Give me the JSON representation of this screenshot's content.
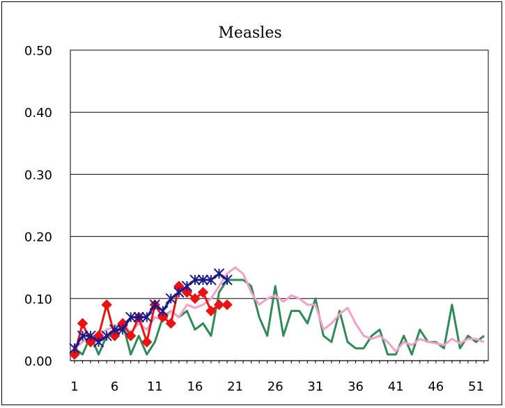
{
  "chart_data": {
    "type": "line",
    "title": "Measles",
    "xlabel": "",
    "ylabel": "",
    "xlim": [
      1,
      52
    ],
    "ylim": [
      0,
      0.5
    ],
    "yticks": [
      "0.00",
      "0.10",
      "0.20",
      "0.30",
      "0.40",
      "0.50"
    ],
    "xticks": [
      "1",
      "6",
      "11",
      "16",
      "21",
      "26",
      "31",
      "36",
      "41",
      "46",
      "51"
    ],
    "grid": true,
    "legend": "none",
    "series": [
      {
        "color": "#2e8b57",
        "marker": "none",
        "x": [
          1,
          2,
          3,
          4,
          5,
          6,
          7,
          8,
          9,
          10,
          11,
          12,
          13,
          14,
          15,
          16,
          17,
          18,
          19,
          20,
          21,
          22,
          23,
          24,
          25,
          26,
          27,
          28,
          29,
          30,
          31,
          32,
          33,
          34,
          35,
          36,
          37,
          38,
          39,
          40,
          41,
          42,
          43,
          44,
          45,
          46,
          47,
          48,
          49,
          50,
          51,
          52
        ],
        "values": [
          0.02,
          0.01,
          0.04,
          0.01,
          0.04,
          0.04,
          0.06,
          0.01,
          0.04,
          0.01,
          0.03,
          0.07,
          0.08,
          0.07,
          0.08,
          0.05,
          0.06,
          0.04,
          0.11,
          0.13,
          0.13,
          0.13,
          0.12,
          0.07,
          0.04,
          0.12,
          0.04,
          0.08,
          0.08,
          0.06,
          0.1,
          0.04,
          0.03,
          0.08,
          0.03,
          0.02,
          0.02,
          0.04,
          0.05,
          0.01,
          0.01,
          0.04,
          0.01,
          0.05,
          0.03,
          0.03,
          0.02,
          0.09,
          0.02,
          0.04,
          0.03,
          0.04
        ]
      },
      {
        "color": "#f4a0c8",
        "marker": "none",
        "x": [
          1,
          2,
          3,
          4,
          5,
          6,
          7,
          8,
          9,
          10,
          11,
          12,
          13,
          14,
          15,
          16,
          17,
          18,
          19,
          20,
          21,
          22,
          23,
          24,
          25,
          26,
          27,
          28,
          29,
          30,
          31,
          32,
          33,
          34,
          35,
          36,
          37,
          38,
          39,
          40,
          41,
          42,
          43,
          44,
          45,
          46,
          47,
          48,
          49,
          50,
          51,
          52
        ],
        "values": [
          0.02,
          0.03,
          0.04,
          0.04,
          0.05,
          0.055,
          0.06,
          0.045,
          0.06,
          0.05,
          0.07,
          0.065,
          0.08,
          0.07,
          0.09,
          0.085,
          0.09,
          0.1,
          0.12,
          0.14,
          0.15,
          0.14,
          0.11,
          0.09,
          0.1,
          0.105,
          0.095,
          0.105,
          0.1,
          0.09,
          0.09,
          0.05,
          0.06,
          0.075,
          0.085,
          0.06,
          0.04,
          0.035,
          0.04,
          0.03,
          0.015,
          0.03,
          0.025,
          0.035,
          0.03,
          0.028,
          0.025,
          0.035,
          0.028,
          0.035,
          0.035,
          0.03
        ]
      },
      {
        "color": "#ee1111",
        "marker": "diamond",
        "x": [
          1,
          2,
          3,
          4,
          5,
          6,
          7,
          8,
          9,
          10,
          11,
          12,
          13,
          14,
          15,
          16,
          17,
          18,
          19,
          20
        ],
        "values": [
          0.01,
          0.06,
          0.03,
          0.04,
          0.09,
          0.04,
          0.06,
          0.04,
          0.07,
          0.03,
          0.09,
          0.07,
          0.06,
          0.12,
          0.11,
          0.1,
          0.11,
          0.08,
          0.09,
          0.09
        ]
      },
      {
        "color": "#1a1a8c",
        "marker": "asterisk",
        "x": [
          1,
          2,
          3,
          4,
          5,
          6,
          7,
          8,
          9,
          10,
          11,
          12,
          13,
          14,
          15,
          16,
          17,
          18,
          19,
          20
        ],
        "values": [
          0.02,
          0.04,
          0.04,
          0.03,
          0.04,
          0.05,
          0.05,
          0.07,
          0.07,
          0.07,
          0.09,
          0.08,
          0.1,
          0.11,
          0.12,
          0.13,
          0.13,
          0.13,
          0.14,
          0.13
        ]
      }
    ]
  }
}
